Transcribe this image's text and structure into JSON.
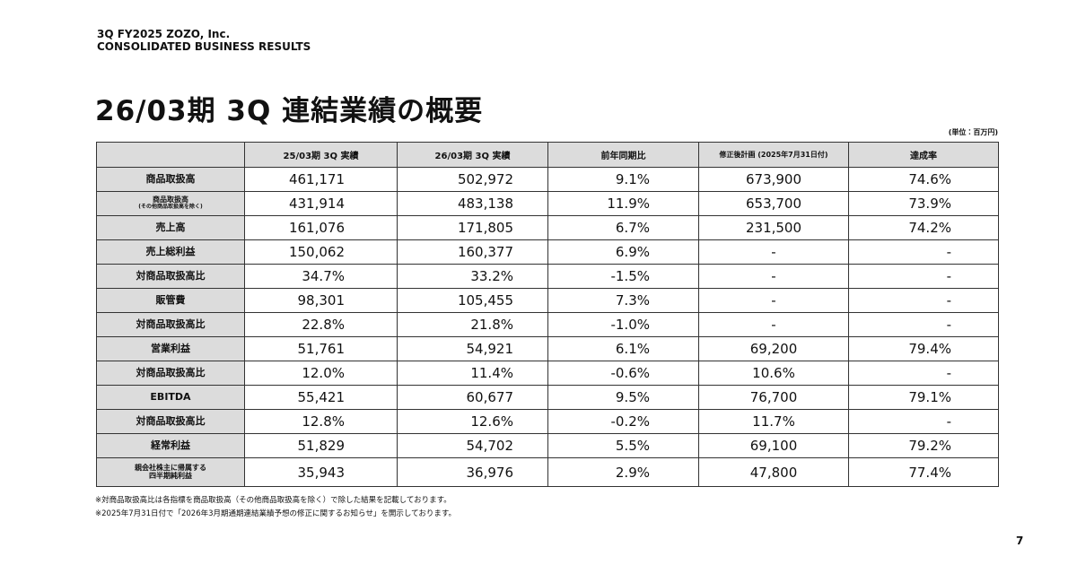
{
  "header": {
    "line1": "3Q FY2025 ZOZO, Inc.",
    "line2": "CONSOLIDATED BUSINESS RESULTS"
  },
  "title": "26/03期 3Q 連結業績の概要",
  "unit": "(単位：百万円)",
  "table": {
    "columns": [
      "25/03期 3Q 実績",
      "26/03期 3Q 実績",
      "前年同期比",
      "修正後計画 (2025年7月31日付)",
      "達成率"
    ],
    "rows": [
      {
        "label": [
          "商品取扱高"
        ],
        "cells": [
          "461,171",
          "502,972",
          "9.1%",
          "673,900",
          "74.6%"
        ]
      },
      {
        "label": [
          "商品取扱高",
          "(その他商品取扱高を除く)"
        ],
        "cells": [
          "431,914",
          "483,138",
          "11.9%",
          "653,700",
          "73.9%"
        ]
      },
      {
        "label": [
          "売上高"
        ],
        "cells": [
          "161,076",
          "171,805",
          "6.7%",
          "231,500",
          "74.2%"
        ]
      },
      {
        "label": [
          "売上総利益"
        ],
        "cells": [
          "150,062",
          "160,377",
          "6.9%",
          "-",
          "-"
        ],
        "dashed_below": true
      },
      {
        "label": [
          "対商品取扱高比"
        ],
        "cells": [
          "34.7%",
          "33.2%",
          "-1.5%",
          "-",
          "-"
        ]
      },
      {
        "label": [
          "販管費"
        ],
        "cells": [
          "98,301",
          "105,455",
          "7.3%",
          "-",
          "-"
        ],
        "dashed_below": true
      },
      {
        "label": [
          "対商品取扱高比"
        ],
        "cells": [
          "22.8%",
          "21.8%",
          "-1.0%",
          "-",
          "-"
        ]
      },
      {
        "label": [
          "営業利益"
        ],
        "cells": [
          "51,761",
          "54,921",
          "6.1%",
          "69,200",
          "79.4%"
        ],
        "dashed_below": true
      },
      {
        "label": [
          "対商品取扱高比"
        ],
        "cells": [
          "12.0%",
          "11.4%",
          "-0.6%",
          "10.6%",
          "-"
        ]
      },
      {
        "label": [
          "EBITDA"
        ],
        "cells": [
          "55,421",
          "60,677",
          "9.5%",
          "76,700",
          "79.1%"
        ],
        "dashed_below": true
      },
      {
        "label": [
          "対商品取扱高比"
        ],
        "cells": [
          "12.8%",
          "12.6%",
          "-0.2%",
          "11.7%",
          "-"
        ]
      },
      {
        "label": [
          "経常利益"
        ],
        "cells": [
          "51,829",
          "54,702",
          "5.5%",
          "69,100",
          "79.2%"
        ]
      },
      {
        "label": [
          "親会社株主に帰属する",
          "四半期純利益"
        ],
        "cells": [
          "35,943",
          "36,976",
          "2.9%",
          "47,800",
          "77.4%"
        ]
      }
    ]
  },
  "footnotes": [
    "※対商品取扱高比は各指標を商品取扱高（その他商品取扱高を除く）で除した結果を記載しております。",
    "※2025年7月31日付で「2026年3月期通期連結業績予想の修正に関するお知らせ」を開示しております。"
  ],
  "page_number": "7"
}
